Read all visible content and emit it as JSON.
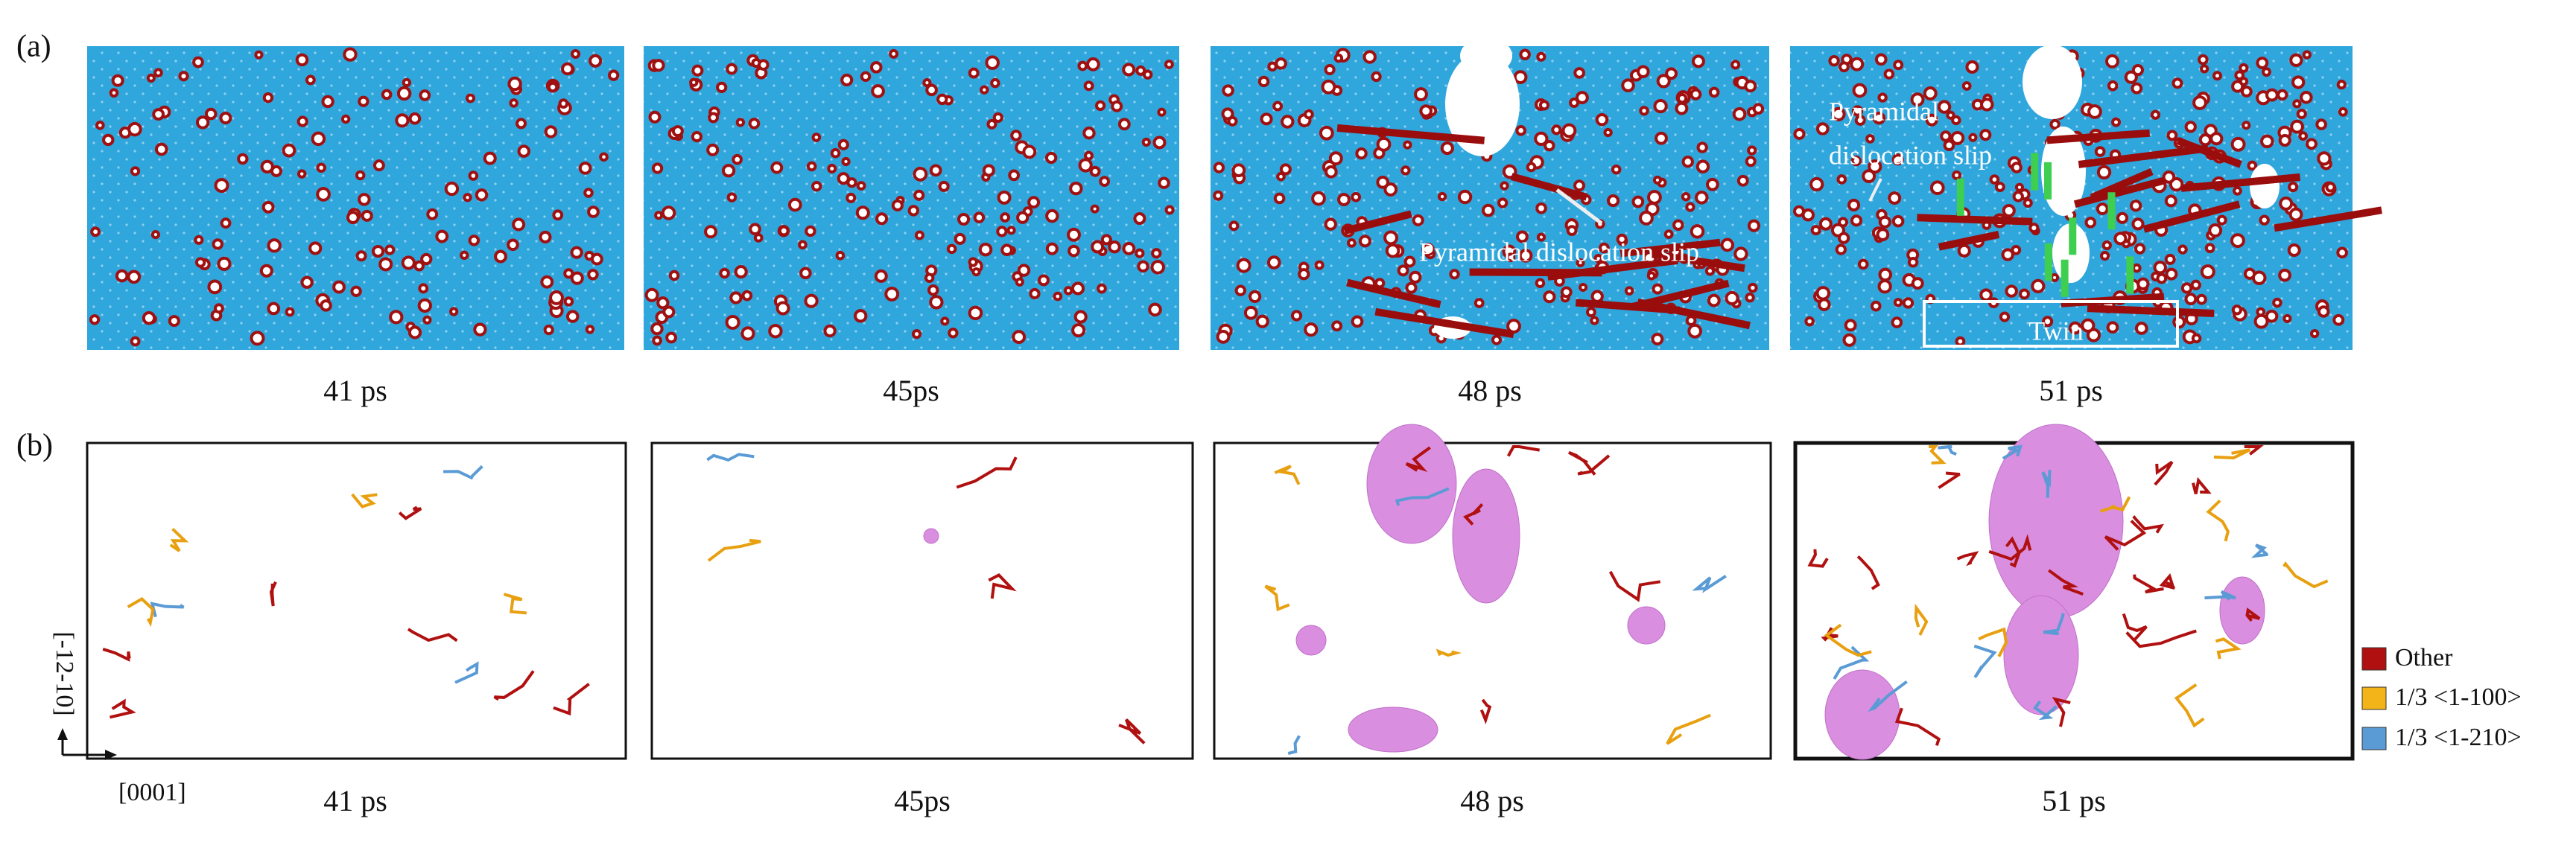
{
  "panel_labels": [
    "(a)",
    "(b)"
  ],
  "row_a": {
    "captions": [
      "41 ps",
      "45ps",
      "48 ps",
      "51 ps"
    ],
    "annotations": [
      "Pyramidal dislocation slip",
      "Pyramidal",
      "dislocation slip",
      "Twin"
    ]
  },
  "row_b": {
    "captions": [
      "41 ps",
      "45ps",
      "48 ps",
      "51 ps"
    ],
    "axes": {
      "vertical": "[-12-10]",
      "horizontal": "[0001]"
    },
    "legend": [
      "Other",
      "1/3 <1-100>",
      "1/3 <1-210>"
    ]
  }
}
